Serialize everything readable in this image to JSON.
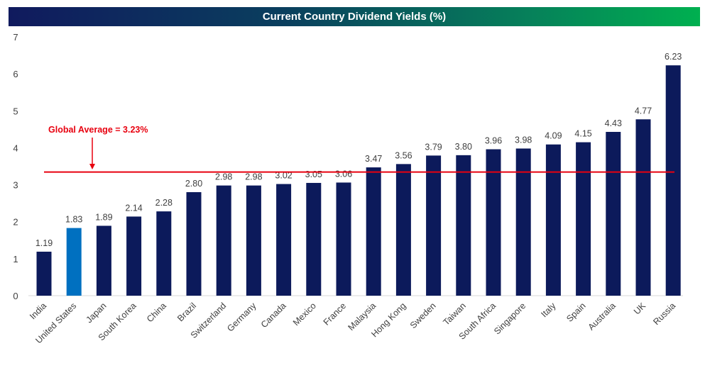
{
  "chart_data": {
    "type": "bar",
    "title": "Current Country Dividend Yields (%)",
    "categories": [
      "India",
      "United States",
      "Japan",
      "South Korea",
      "China",
      "Brazil",
      "Switzerland",
      "Germany",
      "Canada",
      "Mexico",
      "France",
      "Malaysia",
      "Hong Kong",
      "Sweden",
      "Taiwan",
      "South Africa",
      "Singapore",
      "Italy",
      "Spain",
      "Australia",
      "UK",
      "Russia"
    ],
    "values": [
      1.19,
      1.83,
      1.89,
      2.14,
      2.28,
      2.8,
      2.98,
      2.98,
      3.02,
      3.05,
      3.06,
      3.47,
      3.56,
      3.79,
      3.8,
      3.96,
      3.98,
      4.09,
      4.15,
      4.43,
      4.77,
      6.23
    ],
    "value_labels": [
      "1.19",
      "1.83",
      "1.89",
      "2.14",
      "2.28",
      "2.80",
      "2.98",
      "2.98",
      "3.02",
      "3.05",
      "3.06",
      "3.47",
      "3.56",
      "3.79",
      "3.80",
      "3.96",
      "3.98",
      "4.09",
      "4.15",
      "4.43",
      "4.77",
      "6.23"
    ],
    "ylim": [
      0,
      7
    ],
    "yticks": [
      "0",
      "1",
      "2",
      "3",
      "4",
      "5",
      "6",
      "7"
    ],
    "grid": false,
    "colors": {
      "bar": "#0c1a5b",
      "highlight": "#0070c0",
      "highlight_category": "United States",
      "reference_line": "#e8000f",
      "title_gradient": [
        "#101a5e",
        "#00b050"
      ]
    },
    "reference_line": {
      "value": 3.23,
      "label": "Global Average = 3.23%"
    }
  }
}
